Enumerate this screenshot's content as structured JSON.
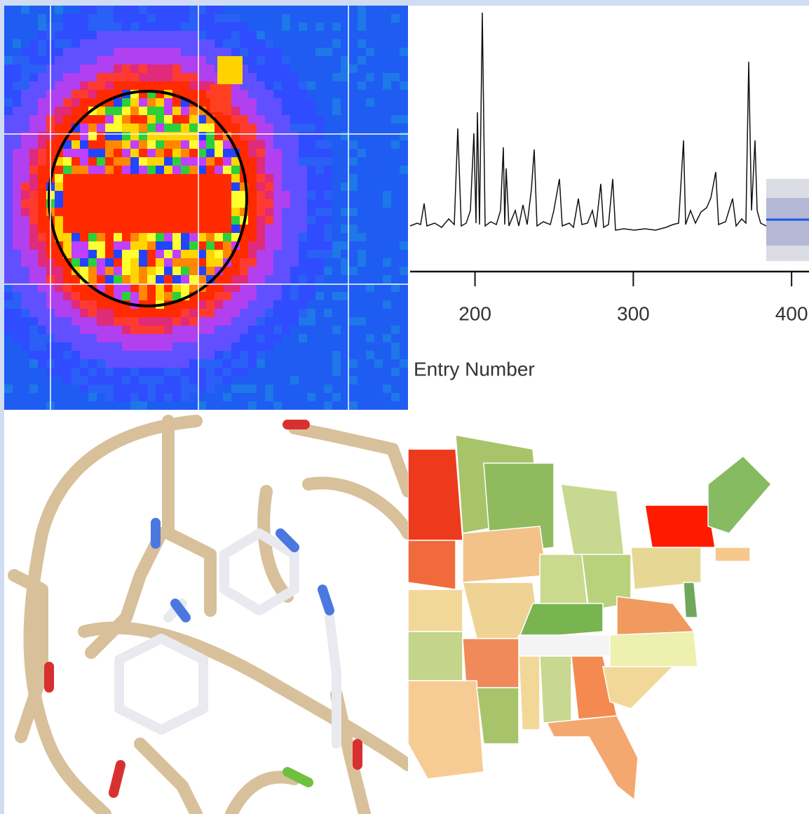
{
  "panels": {
    "line_plot": {
      "x_label": "Entry Number",
      "xlim": [
        159,
        411
      ],
      "xticks": [
        200,
        300,
        400
      ]
    }
  }
}
